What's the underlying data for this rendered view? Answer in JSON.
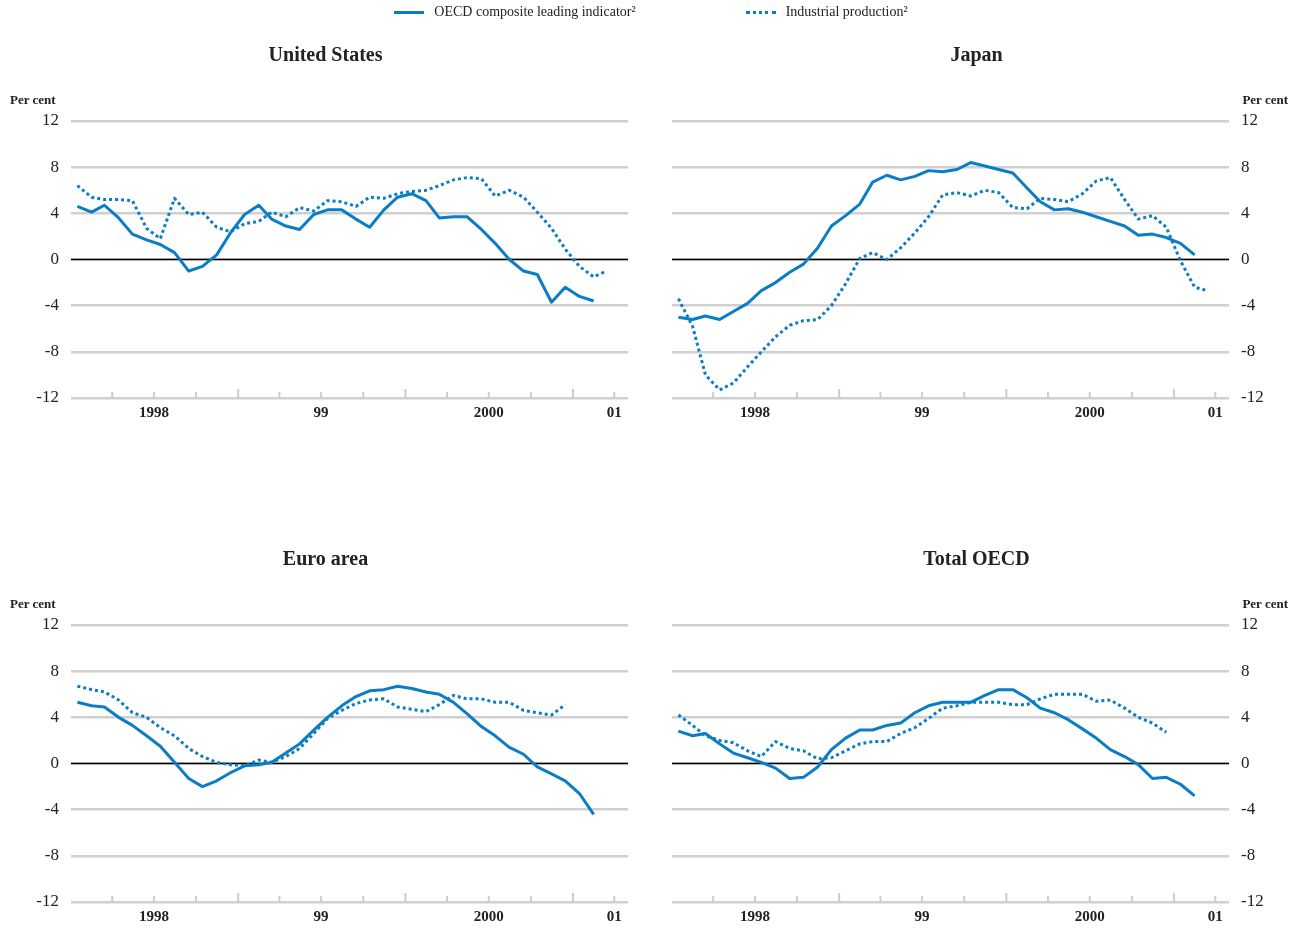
{
  "chart_data": [
    {
      "type": "line",
      "title": "United States",
      "ylabel": "Per cent",
      "legend": "top",
      "grid": "y",
      "marker": "none",
      "x": [
        "1998-01-15",
        "1998-02-15",
        "1998-03-15",
        "1998-04-15",
        "1998-05-15",
        "1998-06-15",
        "1998-07-15",
        "1998-08-15",
        "1998-09-15",
        "1998-10-15",
        "1998-11-15",
        "1998-12-15",
        "1999-01-15",
        "1999-02-15",
        "1999-03-15",
        "1999-04-15",
        "1999-05-15",
        "1999-06-15",
        "1999-07-15",
        "1999-08-15",
        "1999-09-15",
        "1999-10-15",
        "1999-11-15",
        "1999-12-15",
        "2000-01-15",
        "2000-02-15",
        "2000-03-15",
        "2000-04-15",
        "2000-05-15",
        "2000-06-15",
        "2000-07-15",
        "2000-08-15",
        "2000-09-15",
        "2000-10-15",
        "2000-11-15",
        "2000-12-15",
        "2001-01-15",
        "2001-02-15",
        "2001-03-15"
      ],
      "xlim": [
        "1998-01-01",
        "2001-05-01"
      ],
      "xticks": [
        {
          "value": "1998-04-01",
          "label": null
        },
        {
          "value": "1998-07-01",
          "label": "1998"
        },
        {
          "value": "1998-10-01",
          "label": null
        },
        {
          "value": "1999-01-01",
          "label": null
        },
        {
          "value": "1999-04-01",
          "label": null
        },
        {
          "value": "1999-07-01",
          "label": "99"
        },
        {
          "value": "1999-10-01",
          "label": null
        },
        {
          "value": "2000-01-01",
          "label": null
        },
        {
          "value": "2000-04-01",
          "label": null
        },
        {
          "value": "2000-07-01",
          "label": "2000"
        },
        {
          "value": "2000-10-01",
          "label": null
        },
        {
          "value": "2001-01-01",
          "label": null
        },
        {
          "value": "2001-04-01",
          "label": "01"
        }
      ],
      "ylim": [
        -12,
        12
      ],
      "yticks": [
        -12,
        -8,
        -4,
        0,
        4,
        8,
        12
      ],
      "ref_lines": [
        {
          "axis": "y",
          "value": 0,
          "color": "#000000"
        }
      ],
      "series": [
        {
          "name": "OECD composite leading indicator²",
          "color": "#0b7dc4",
          "line_style": "solid",
          "values": [
            4.6,
            4.1,
            4.7,
            3.6,
            2.2,
            1.7,
            1.3,
            0.6,
            -1.0,
            -0.6,
            0.4,
            2.3,
            3.9,
            4.7,
            3.5,
            2.9,
            2.6,
            3.9,
            4.3,
            4.3,
            3.5,
            2.8,
            4.3,
            5.4,
            5.7,
            5.1,
            3.6,
            3.7,
            3.7,
            2.6,
            1.4,
            0.0,
            -1.0,
            -1.3,
            -3.7,
            -2.4,
            -3.2,
            -3.6,
            null
          ]
        },
        {
          "name": "Industrial production²",
          "color": "#0b7dc4",
          "line_style": "dotted",
          "values": [
            6.4,
            5.4,
            5.2,
            5.2,
            5.1,
            2.7,
            1.8,
            5.3,
            3.9,
            4.1,
            2.8,
            2.4,
            3.1,
            3.3,
            4.1,
            3.7,
            4.5,
            4.2,
            5.1,
            5.0,
            4.6,
            5.4,
            5.3,
            5.7,
            5.9,
            6.0,
            6.4,
            6.9,
            7.1,
            7.0,
            5.5,
            6.0,
            5.4,
            4.1,
            2.7,
            0.9,
            -0.6,
            -1.5,
            -1.0
          ]
        }
      ]
    },
    {
      "type": "line",
      "title": "Japan",
      "ylabel": "Per cent",
      "grid": "y",
      "marker": "none",
      "x": [
        "1998-01-15",
        "1998-02-15",
        "1998-03-15",
        "1998-04-15",
        "1998-05-15",
        "1998-06-15",
        "1998-07-15",
        "1998-08-15",
        "1998-09-15",
        "1998-10-15",
        "1998-11-15",
        "1998-12-15",
        "1999-01-15",
        "1999-02-15",
        "1999-03-15",
        "1999-04-15",
        "1999-05-15",
        "1999-06-15",
        "1999-07-15",
        "1999-08-15",
        "1999-09-15",
        "1999-10-15",
        "1999-11-15",
        "1999-12-15",
        "2000-01-15",
        "2000-02-15",
        "2000-03-15",
        "2000-04-15",
        "2000-05-15",
        "2000-06-15",
        "2000-07-15",
        "2000-08-15",
        "2000-09-15",
        "2000-10-15",
        "2000-11-15",
        "2000-12-15",
        "2001-01-15",
        "2001-02-15",
        "2001-03-15"
      ],
      "xlim": [
        "1998-01-01",
        "2001-05-01"
      ],
      "xticks": [
        {
          "value": "1998-04-01",
          "label": null
        },
        {
          "value": "1998-07-01",
          "label": "1998"
        },
        {
          "value": "1998-10-01",
          "label": null
        },
        {
          "value": "1999-01-01",
          "label": null
        },
        {
          "value": "1999-04-01",
          "label": null
        },
        {
          "value": "1999-07-01",
          "label": "99"
        },
        {
          "value": "1999-10-01",
          "label": null
        },
        {
          "value": "2000-01-01",
          "label": null
        },
        {
          "value": "2000-04-01",
          "label": null
        },
        {
          "value": "2000-07-01",
          "label": "2000"
        },
        {
          "value": "2000-10-01",
          "label": null
        },
        {
          "value": "2001-01-01",
          "label": null
        },
        {
          "value": "2001-04-01",
          "label": "01"
        }
      ],
      "ylim": [
        -12,
        12
      ],
      "yticks": [
        -12,
        -8,
        -4,
        0,
        4,
        8,
        12
      ],
      "ref_lines": [
        {
          "axis": "y",
          "value": 0,
          "color": "#000000"
        }
      ],
      "series": [
        {
          "color": "#0b7dc4",
          "line_style": "solid",
          "values": [
            -5.0,
            -5.2,
            -4.9,
            -5.2,
            -4.5,
            -3.8,
            -2.7,
            -2.0,
            -1.1,
            -0.4,
            1.0,
            2.9,
            3.8,
            4.8,
            6.7,
            7.3,
            6.9,
            7.2,
            7.7,
            7.6,
            7.8,
            8.4,
            8.1,
            7.8,
            7.5,
            6.2,
            5.0,
            4.3,
            4.4,
            4.1,
            3.7,
            3.3,
            2.9,
            2.1,
            2.2,
            1.9,
            1.4,
            0.4,
            null
          ]
        },
        {
          "color": "#0b7dc4",
          "line_style": "dotted",
          "values": [
            -3.4,
            -5.8,
            -10.0,
            -11.3,
            -10.7,
            -9.3,
            -8.0,
            -6.7,
            -5.7,
            -5.3,
            -5.2,
            -4.0,
            -2.1,
            0.1,
            0.6,
            0.0,
            1.0,
            2.3,
            3.7,
            5.6,
            5.8,
            5.5,
            6.0,
            5.8,
            4.5,
            4.4,
            5.3,
            5.2,
            5.0,
            5.7,
            6.8,
            7.1,
            5.2,
            3.5,
            3.8,
            2.8,
            -0.1,
            -2.4,
            -2.7
          ]
        }
      ]
    },
    {
      "type": "line",
      "title": "Euro area",
      "ylabel": "Per cent",
      "grid": "y",
      "marker": "none",
      "x": [
        "1998-01-15",
        "1998-02-15",
        "1998-03-15",
        "1998-04-15",
        "1998-05-15",
        "1998-06-15",
        "1998-07-15",
        "1998-08-15",
        "1998-09-15",
        "1998-10-15",
        "1998-11-15",
        "1998-12-15",
        "1999-01-15",
        "1999-02-15",
        "1999-03-15",
        "1999-04-15",
        "1999-05-15",
        "1999-06-15",
        "1999-07-15",
        "1999-08-15",
        "1999-09-15",
        "1999-10-15",
        "1999-11-15",
        "1999-12-15",
        "2000-01-15",
        "2000-02-15",
        "2000-03-15",
        "2000-04-15",
        "2000-05-15",
        "2000-06-15",
        "2000-07-15",
        "2000-08-15",
        "2000-09-15",
        "2000-10-15",
        "2000-11-15",
        "2000-12-15",
        "2001-01-15",
        "2001-02-15"
      ],
      "xlim": [
        "1998-01-01",
        "2001-05-01"
      ],
      "xticks": [
        {
          "value": "1998-04-01",
          "label": null
        },
        {
          "value": "1998-07-01",
          "label": "1998"
        },
        {
          "value": "1998-10-01",
          "label": null
        },
        {
          "value": "1999-01-01",
          "label": null
        },
        {
          "value": "1999-04-01",
          "label": null
        },
        {
          "value": "1999-07-01",
          "label": "99"
        },
        {
          "value": "1999-10-01",
          "label": null
        },
        {
          "value": "2000-01-01",
          "label": null
        },
        {
          "value": "2000-04-01",
          "label": null
        },
        {
          "value": "2000-07-01",
          "label": "2000"
        },
        {
          "value": "2000-10-01",
          "label": null
        },
        {
          "value": "2001-01-01",
          "label": null
        },
        {
          "value": "2001-04-01",
          "label": "01"
        }
      ],
      "ylim": [
        -12,
        12
      ],
      "yticks": [
        -12,
        -8,
        -4,
        0,
        4,
        8,
        12
      ],
      "ref_lines": [
        {
          "axis": "y",
          "value": 0,
          "color": "#000000"
        }
      ],
      "series": [
        {
          "color": "#0b7dc4",
          "line_style": "solid",
          "values": [
            5.3,
            5.0,
            4.9,
            4.0,
            3.3,
            2.4,
            1.5,
            0.1,
            -1.3,
            -2.0,
            -1.5,
            -0.8,
            -0.2,
            -0.1,
            0.1,
            0.9,
            1.7,
            2.9,
            4.0,
            5.0,
            5.8,
            6.3,
            6.4,
            6.7,
            6.5,
            6.2,
            6.0,
            5.3,
            4.3,
            3.2,
            2.4,
            1.4,
            0.8,
            -0.3,
            -0.9,
            -1.5,
            -2.6,
            -4.4
          ]
        },
        {
          "color": "#0b7dc4",
          "line_style": "dotted",
          "values": [
            6.7,
            6.4,
            6.2,
            5.5,
            4.4,
            4.0,
            3.1,
            2.4,
            1.3,
            0.6,
            0.1,
            -0.1,
            -0.2,
            0.3,
            0.1,
            0.6,
            1.3,
            2.6,
            3.9,
            4.6,
            5.2,
            5.5,
            5.6,
            4.9,
            4.7,
            4.5,
            5.1,
            5.9,
            5.6,
            5.6,
            5.3,
            5.3,
            4.6,
            4.4,
            4.2,
            5.1,
            null,
            null
          ]
        }
      ]
    },
    {
      "type": "line",
      "title": "Total OECD",
      "ylabel": "Per cent",
      "grid": "y",
      "marker": "none",
      "x": [
        "1998-01-15",
        "1998-02-15",
        "1998-03-15",
        "1998-04-15",
        "1998-05-15",
        "1998-06-15",
        "1998-07-15",
        "1998-08-15",
        "1998-09-15",
        "1998-10-15",
        "1998-11-15",
        "1998-12-15",
        "1999-01-15",
        "1999-02-15",
        "1999-03-15",
        "1999-04-15",
        "1999-05-15",
        "1999-06-15",
        "1999-07-15",
        "1999-08-15",
        "1999-09-15",
        "1999-10-15",
        "1999-11-15",
        "1999-12-15",
        "2000-01-15",
        "2000-02-15",
        "2000-03-15",
        "2000-04-15",
        "2000-05-15",
        "2000-06-15",
        "2000-07-15",
        "2000-08-15",
        "2000-09-15",
        "2000-10-15",
        "2000-11-15",
        "2000-12-15",
        "2001-01-15",
        "2001-02-15"
      ],
      "xlim": [
        "1998-01-01",
        "2001-05-01"
      ],
      "xticks": [
        {
          "value": "1998-04-01",
          "label": null
        },
        {
          "value": "1998-07-01",
          "label": "1998"
        },
        {
          "value": "1998-10-01",
          "label": null
        },
        {
          "value": "1999-01-01",
          "label": null
        },
        {
          "value": "1999-04-01",
          "label": null
        },
        {
          "value": "1999-07-01",
          "label": "99"
        },
        {
          "value": "1999-10-01",
          "label": null
        },
        {
          "value": "2000-01-01",
          "label": null
        },
        {
          "value": "2000-04-01",
          "label": null
        },
        {
          "value": "2000-07-01",
          "label": "2000"
        },
        {
          "value": "2000-10-01",
          "label": null
        },
        {
          "value": "2001-01-01",
          "label": null
        },
        {
          "value": "2001-04-01",
          "label": "01"
        }
      ],
      "ylim": [
        -12,
        12
      ],
      "yticks": [
        -12,
        -8,
        -4,
        0,
        4,
        8,
        12
      ],
      "ref_lines": [
        {
          "axis": "y",
          "value": 0,
          "color": "#000000"
        }
      ],
      "series": [
        {
          "color": "#0b7dc4",
          "line_style": "solid",
          "values": [
            2.8,
            2.4,
            2.6,
            1.7,
            0.9,
            0.5,
            0.1,
            -0.4,
            -1.3,
            -1.2,
            -0.3,
            1.2,
            2.2,
            2.9,
            2.9,
            3.3,
            3.5,
            4.4,
            5.0,
            5.3,
            5.3,
            5.3,
            5.9,
            6.4,
            6.4,
            5.7,
            4.8,
            4.4,
            3.8,
            3.0,
            2.2,
            1.2,
            0.6,
            -0.1,
            -1.3,
            -1.2,
            -1.8,
            -2.8
          ]
        },
        {
          "color": "#0b7dc4",
          "line_style": "dotted",
          "values": [
            4.2,
            3.3,
            2.4,
            2.0,
            1.8,
            1.1,
            0.6,
            1.9,
            1.3,
            1.1,
            0.4,
            0.5,
            1.1,
            1.7,
            1.9,
            1.9,
            2.6,
            3.1,
            3.9,
            4.8,
            5.0,
            5.3,
            5.3,
            5.3,
            5.1,
            5.1,
            5.6,
            6.0,
            6.0,
            6.0,
            5.4,
            5.5,
            4.8,
            4.0,
            3.5,
            2.7,
            null,
            null
          ]
        }
      ]
    }
  ]
}
